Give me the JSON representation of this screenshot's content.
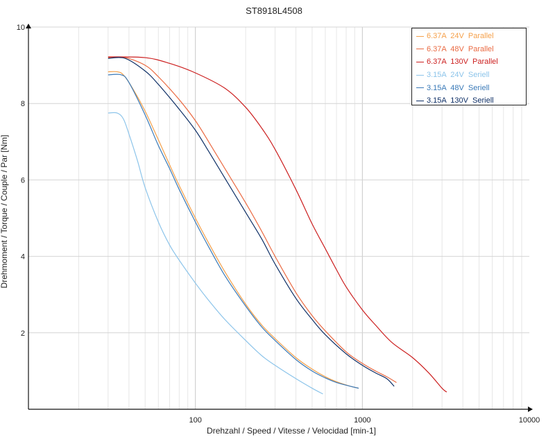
{
  "chart_data": {
    "type": "line",
    "title": "ST8918L4508",
    "xlabel": "Drehzahl / Speed / Vitesse / Velocidad [min-1]",
    "ylabel": "Drehmoment / Torque / Couple / Par [Nm]",
    "x_scale": "log",
    "xlim": [
      10,
      10000
    ],
    "ylim": [
      0,
      10
    ],
    "x_ticks": [
      100,
      1000,
      10000
    ],
    "x_tick_labels": [
      "100",
      "1000",
      "10000"
    ],
    "y_ticks": [
      2,
      4,
      6,
      8,
      10
    ],
    "y_tick_labels": [
      "2",
      "4",
      "6",
      "8",
      "10"
    ],
    "grid": true,
    "legend_position": "top-right",
    "series": [
      {
        "name": "6.37A  24V  Parallel",
        "color": "#f5a04a",
        "points": [
          [
            30,
            8.83
          ],
          [
            34,
            8.83
          ],
          [
            37,
            8.75
          ],
          [
            42,
            8.4
          ],
          [
            50,
            7.8
          ],
          [
            60,
            7.05
          ],
          [
            70,
            6.4
          ],
          [
            80,
            5.85
          ],
          [
            100,
            5.0
          ],
          [
            120,
            4.35
          ],
          [
            150,
            3.6
          ],
          [
            200,
            2.75
          ],
          [
            250,
            2.2
          ],
          [
            300,
            1.85
          ],
          [
            400,
            1.35
          ],
          [
            500,
            1.05
          ],
          [
            600,
            0.85
          ],
          [
            700,
            0.72
          ],
          [
            850,
            0.6
          ],
          [
            950,
            0.55
          ]
        ]
      },
      {
        "name": "6.37A  48V  Parallel",
        "color": "#ea6a42",
        "points": [
          [
            30,
            9.2
          ],
          [
            38,
            9.2
          ],
          [
            50,
            9.0
          ],
          [
            60,
            8.7
          ],
          [
            80,
            8.1
          ],
          [
            100,
            7.55
          ],
          [
            120,
            7.0
          ],
          [
            150,
            6.3
          ],
          [
            200,
            5.4
          ],
          [
            250,
            4.65
          ],
          [
            300,
            4.0
          ],
          [
            400,
            3.05
          ],
          [
            500,
            2.45
          ],
          [
            600,
            2.05
          ],
          [
            800,
            1.5
          ],
          [
            1000,
            1.2
          ],
          [
            1200,
            1.0
          ],
          [
            1400,
            0.85
          ],
          [
            1600,
            0.7
          ]
        ]
      },
      {
        "name": "6.37A  130V  Parallel",
        "color": "#cc1f1f",
        "points": [
          [
            30,
            9.22
          ],
          [
            50,
            9.2
          ],
          [
            70,
            9.05
          ],
          [
            100,
            8.8
          ],
          [
            150,
            8.4
          ],
          [
            200,
            7.9
          ],
          [
            250,
            7.35
          ],
          [
            300,
            6.8
          ],
          [
            400,
            5.75
          ],
          [
            500,
            4.85
          ],
          [
            600,
            4.2
          ],
          [
            700,
            3.65
          ],
          [
            800,
            3.2
          ],
          [
            1000,
            2.6
          ],
          [
            1200,
            2.2
          ],
          [
            1500,
            1.75
          ],
          [
            2000,
            1.35
          ],
          [
            2500,
            0.95
          ],
          [
            3000,
            0.55
          ],
          [
            3200,
            0.45
          ]
        ]
      },
      {
        "name": "3.15A  24V  Seriell",
        "color": "#8cc4ea",
        "points": [
          [
            30,
            7.75
          ],
          [
            34,
            7.75
          ],
          [
            37,
            7.6
          ],
          [
            40,
            7.2
          ],
          [
            45,
            6.5
          ],
          [
            50,
            5.8
          ],
          [
            60,
            4.9
          ],
          [
            70,
            4.3
          ],
          [
            80,
            3.9
          ],
          [
            100,
            3.3
          ],
          [
            120,
            2.85
          ],
          [
            150,
            2.35
          ],
          [
            200,
            1.8
          ],
          [
            250,
            1.4
          ],
          [
            300,
            1.15
          ],
          [
            400,
            0.8
          ],
          [
            500,
            0.55
          ],
          [
            580,
            0.4
          ]
        ]
      },
      {
        "name": "3.15A  48V  Seriell",
        "color": "#3a7ab8",
        "points": [
          [
            30,
            8.75
          ],
          [
            36,
            8.75
          ],
          [
            40,
            8.55
          ],
          [
            50,
            7.7
          ],
          [
            60,
            6.9
          ],
          [
            70,
            6.3
          ],
          [
            80,
            5.75
          ],
          [
            100,
            4.9
          ],
          [
            120,
            4.25
          ],
          [
            150,
            3.5
          ],
          [
            200,
            2.7
          ],
          [
            250,
            2.15
          ],
          [
            300,
            1.8
          ],
          [
            400,
            1.3
          ],
          [
            500,
            1.0
          ],
          [
            600,
            0.82
          ],
          [
            700,
            0.7
          ],
          [
            850,
            0.6
          ],
          [
            950,
            0.55
          ]
        ]
      },
      {
        "name": "3.15A  130V  Seriell",
        "color": "#0e2f66",
        "points": [
          [
            30,
            9.18
          ],
          [
            38,
            9.18
          ],
          [
            50,
            8.85
          ],
          [
            60,
            8.5
          ],
          [
            80,
            7.85
          ],
          [
            100,
            7.3
          ],
          [
            120,
            6.75
          ],
          [
            150,
            6.05
          ],
          [
            200,
            5.15
          ],
          [
            250,
            4.45
          ],
          [
            300,
            3.8
          ],
          [
            400,
            2.9
          ],
          [
            500,
            2.35
          ],
          [
            600,
            1.95
          ],
          [
            800,
            1.45
          ],
          [
            1000,
            1.15
          ],
          [
            1200,
            0.95
          ],
          [
            1400,
            0.8
          ],
          [
            1550,
            0.6
          ]
        ]
      }
    ]
  }
}
